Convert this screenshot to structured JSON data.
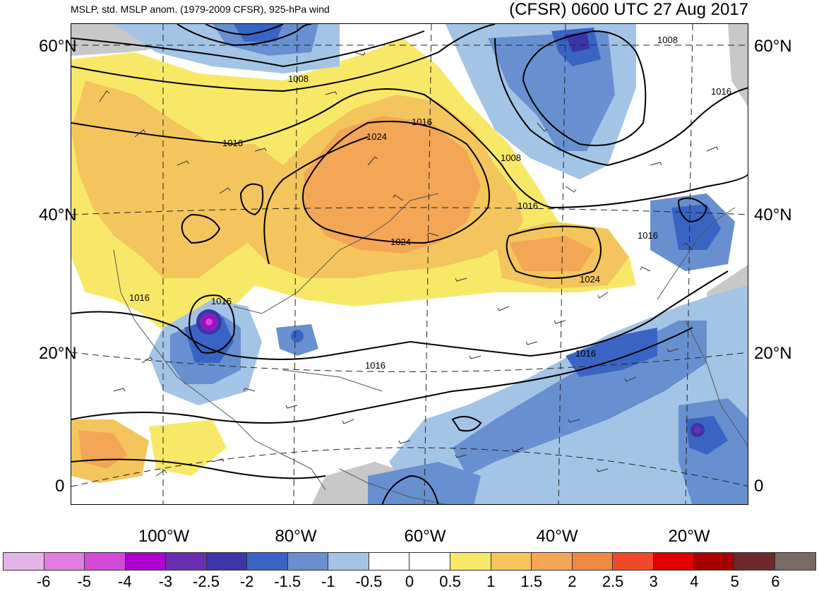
{
  "title": {
    "left": "MSLP, std. MSLP anom. (1979-2009 CFSR), 925-hPa wind",
    "right": "(CFSR) 0600 UTC 27 Aug 2017"
  },
  "map": {
    "region": "North Atlantic basin",
    "lat_labels": [
      "60°N",
      "40°N",
      "20°N",
      "0"
    ],
    "lon_labels": [
      "100°W",
      "80°W",
      "60°W",
      "40°W",
      "20°W"
    ],
    "isobar_labels": [
      "1008",
      "1008",
      "1008",
      "1016",
      "1016",
      "1016",
      "1016",
      "1016",
      "1016",
      "1016",
      "1016",
      "1024",
      "1024",
      "1024"
    ],
    "features": {
      "hurricane_center": "Gulf of Mexico / Texas coast, strong negative anomaly (< -4)",
      "high_pressure": "1024 hPa over northeastern US / Canada and central Atlantic",
      "low_pressure": "1008 hPa near southern Greenland and Hudson Bay"
    }
  },
  "colorbar": {
    "labels": [
      "-6",
      "-5",
      "-4",
      "-3",
      "-2.5",
      "-2",
      "-1.5",
      "-1",
      "-0.5",
      "0",
      "0.5",
      "1",
      "1.5",
      "2",
      "2.5",
      "3",
      "4",
      "5",
      "6"
    ],
    "colors": [
      "#e6b3e6",
      "#e07fe0",
      "#d24bd8",
      "#b000d0",
      "#6a2fb0",
      "#3b35a8",
      "#3a64c4",
      "#6890d0",
      "#a4c4e6",
      "#ffffff",
      "#ffffff",
      "#f8e868",
      "#f4c55c",
      "#f3a655",
      "#f08744",
      "#f04a2a",
      "#e00000",
      "#a80000",
      "#6e2a2a",
      "#7a6a66"
    ]
  }
}
